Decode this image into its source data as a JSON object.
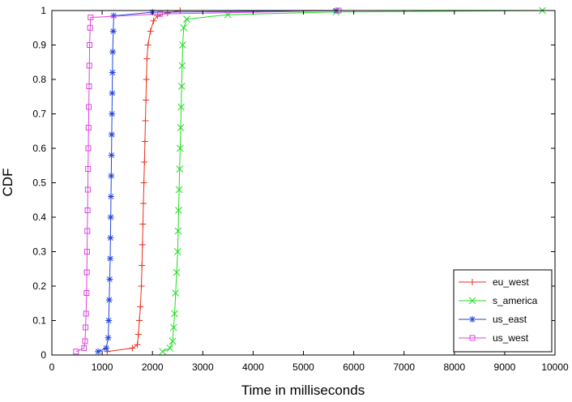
{
  "chart_data": {
    "type": "line",
    "title": "",
    "xlabel": "Time in milliseconds",
    "ylabel": "CDF",
    "xlim": [
      0,
      10000
    ],
    "ylim": [
      0,
      1
    ],
    "x_ticks": [
      "0",
      "1000",
      "2000",
      "3000",
      "4000",
      "5000",
      "6000",
      "7000",
      "8000",
      "9000",
      "10000"
    ],
    "y_ticks": [
      "0",
      "0.1",
      "0.2",
      "0.3",
      "0.4",
      "0.5",
      "0.6",
      "0.7",
      "0.8",
      "0.9",
      "1"
    ],
    "grid": false,
    "legend_position": "bottom-right",
    "series": [
      {
        "name": "eu_west",
        "color": "#e8301c",
        "marker": "plus",
        "points": [
          [
            1100,
            0.01
          ],
          [
            1600,
            0.02
          ],
          [
            1700,
            0.03
          ],
          [
            1720,
            0.06
          ],
          [
            1740,
            0.1
          ],
          [
            1760,
            0.14
          ],
          [
            1780,
            0.2
          ],
          [
            1790,
            0.26
          ],
          [
            1800,
            0.32
          ],
          [
            1810,
            0.38
          ],
          [
            1820,
            0.44
          ],
          [
            1830,
            0.5
          ],
          [
            1840,
            0.56
          ],
          [
            1850,
            0.62
          ],
          [
            1860,
            0.68
          ],
          [
            1870,
            0.74
          ],
          [
            1880,
            0.8
          ],
          [
            1890,
            0.86
          ],
          [
            1910,
            0.9
          ],
          [
            1960,
            0.94
          ],
          [
            2020,
            0.97
          ],
          [
            2100,
            0.985
          ],
          [
            2300,
            0.993
          ],
          [
            2550,
            1.0
          ]
        ]
      },
      {
        "name": "s_america",
        "color": "#22dd22",
        "marker": "x",
        "points": [
          [
            2200,
            0.01
          ],
          [
            2350,
            0.02
          ],
          [
            2400,
            0.04
          ],
          [
            2420,
            0.08
          ],
          [
            2440,
            0.12
          ],
          [
            2460,
            0.18
          ],
          [
            2480,
            0.24
          ],
          [
            2500,
            0.3
          ],
          [
            2510,
            0.36
          ],
          [
            2520,
            0.42
          ],
          [
            2530,
            0.48
          ],
          [
            2540,
            0.54
          ],
          [
            2550,
            0.6
          ],
          [
            2560,
            0.66
          ],
          [
            2570,
            0.72
          ],
          [
            2580,
            0.78
          ],
          [
            2590,
            0.84
          ],
          [
            2600,
            0.9
          ],
          [
            2620,
            0.95
          ],
          [
            2680,
            0.975
          ],
          [
            3500,
            0.988
          ],
          [
            5650,
            0.996
          ],
          [
            9750,
            1.0
          ]
        ]
      },
      {
        "name": "us_east",
        "color": "#2244dd",
        "marker": "asterisk",
        "points": [
          [
            920,
            0.01
          ],
          [
            1080,
            0.02
          ],
          [
            1120,
            0.05
          ],
          [
            1130,
            0.1
          ],
          [
            1140,
            0.16
          ],
          [
            1150,
            0.22
          ],
          [
            1160,
            0.28
          ],
          [
            1165,
            0.34
          ],
          [
            1170,
            0.4
          ],
          [
            1175,
            0.46
          ],
          [
            1180,
            0.52
          ],
          [
            1185,
            0.58
          ],
          [
            1190,
            0.64
          ],
          [
            1195,
            0.7
          ],
          [
            1200,
            0.76
          ],
          [
            1205,
            0.82
          ],
          [
            1210,
            0.88
          ],
          [
            1220,
            0.94
          ],
          [
            1230,
            0.985
          ],
          [
            2000,
            0.995
          ],
          [
            5650,
            1.0
          ]
        ]
      },
      {
        "name": "us_west",
        "color": "#dd44dd",
        "marker": "square",
        "points": [
          [
            480,
            0.01
          ],
          [
            640,
            0.02
          ],
          [
            660,
            0.04
          ],
          [
            670,
            0.08
          ],
          [
            680,
            0.12
          ],
          [
            690,
            0.18
          ],
          [
            695,
            0.24
          ],
          [
            700,
            0.3
          ],
          [
            705,
            0.36
          ],
          [
            710,
            0.42
          ],
          [
            715,
            0.48
          ],
          [
            720,
            0.54
          ],
          [
            725,
            0.6
          ],
          [
            730,
            0.66
          ],
          [
            735,
            0.72
          ],
          [
            740,
            0.78
          ],
          [
            745,
            0.84
          ],
          [
            750,
            0.9
          ],
          [
            760,
            0.95
          ],
          [
            770,
            0.98
          ],
          [
            2150,
            0.99
          ],
          [
            5700,
            1.0
          ]
        ]
      }
    ]
  }
}
